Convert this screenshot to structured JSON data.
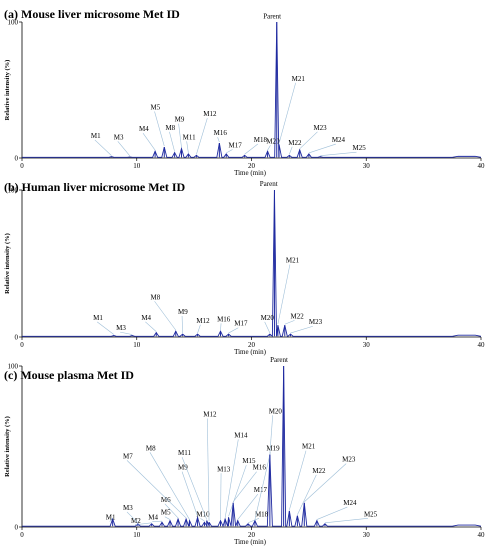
{
  "chart_data": [
    {
      "type": "line",
      "title": "(a) Mouse liver microsome Met ID",
      "xlabel": "Time (min)",
      "ylabel": "Relative intensity (%)",
      "xlim": [
        0,
        40
      ],
      "ylim": [
        0,
        100
      ],
      "x_ticks": [
        "0",
        "10",
        "20",
        "30",
        "40"
      ],
      "y_ticks": [
        "0",
        "100"
      ],
      "peaks": [
        {
          "name": "M1",
          "x": 7.8,
          "y": 1,
          "label_x": 6.0,
          "label_y": 14
        },
        {
          "name": "M3",
          "x": 9.4,
          "y": 0.8,
          "label_x": 8.0,
          "label_y": 13
        },
        {
          "name": "M4",
          "x": 11.6,
          "y": 5,
          "label_x": 10.2,
          "label_y": 19
        },
        {
          "name": "M5",
          "x": 12.4,
          "y": 8,
          "label_x": 11.2,
          "label_y": 35
        },
        {
          "name": "M8",
          "x": 13.3,
          "y": 4,
          "label_x": 12.5,
          "label_y": 20
        },
        {
          "name": "M9",
          "x": 13.9,
          "y": 7,
          "label_x": 13.3,
          "label_y": 26
        },
        {
          "name": "M11",
          "x": 14.5,
          "y": 3,
          "label_x": 14.0,
          "label_y": 13
        },
        {
          "name": "M12",
          "x": 15.2,
          "y": 2,
          "label_x": 15.8,
          "label_y": 30
        },
        {
          "name": "M16",
          "x": 17.2,
          "y": 11,
          "label_x": 16.7,
          "label_y": 16
        },
        {
          "name": "M17",
          "x": 17.8,
          "y": 3,
          "label_x": 18.0,
          "label_y": 7
        },
        {
          "name": "M18",
          "x": 19.4,
          "y": 2,
          "label_x": 20.2,
          "label_y": 11
        },
        {
          "name": "M20",
          "x": 21.4,
          "y": 5,
          "label_x": 21.3,
          "label_y": 10
        },
        {
          "name": "Parent",
          "x": 22.2,
          "y": 100,
          "label_x": 21.8,
          "label_y": 102
        },
        {
          "name": "M21",
          "x": 22.4,
          "y": 10,
          "label_x": 23.5,
          "label_y": 56
        },
        {
          "name": "M22",
          "x": 23.3,
          "y": 2,
          "label_x": 23.2,
          "label_y": 9
        },
        {
          "name": "M23",
          "x": 24.2,
          "y": 6,
          "label_x": 25.4,
          "label_y": 20
        },
        {
          "name": "M24",
          "x": 25.0,
          "y": 3,
          "label_x": 27.0,
          "label_y": 11
        },
        {
          "name": "M25",
          "x": 26.0,
          "y": 1,
          "label_x": 28.8,
          "label_y": 5
        }
      ]
    },
    {
      "type": "line",
      "title": "(b) Human liver microsome Met ID",
      "xlabel": "Time (min)",
      "ylabel": "Relative intensity (%)",
      "xlim": [
        0,
        40
      ],
      "ylim": [
        0,
        100
      ],
      "x_ticks": [
        "0",
        "10",
        "20",
        "30",
        "40"
      ],
      "y_ticks": [
        "0",
        "100"
      ],
      "peaks": [
        {
          "name": "M1",
          "x": 8.0,
          "y": 1,
          "label_x": 6.2,
          "label_y": 11
        },
        {
          "name": "M3",
          "x": 9.6,
          "y": 1,
          "label_x": 8.2,
          "label_y": 4
        },
        {
          "name": "M4",
          "x": 11.7,
          "y": 3,
          "label_x": 10.4,
          "label_y": 11
        },
        {
          "name": "M8",
          "x": 13.4,
          "y": 4,
          "label_x": 11.2,
          "label_y": 25
        },
        {
          "name": "M9",
          "x": 14.0,
          "y": 2,
          "label_x": 13.6,
          "label_y": 15
        },
        {
          "name": "M12",
          "x": 15.3,
          "y": 2,
          "label_x": 15.2,
          "label_y": 9
        },
        {
          "name": "M16",
          "x": 17.3,
          "y": 4,
          "label_x": 17.0,
          "label_y": 10
        },
        {
          "name": "M17",
          "x": 18.0,
          "y": 2,
          "label_x": 18.5,
          "label_y": 7
        },
        {
          "name": "M20",
          "x": 21.6,
          "y": 2,
          "label_x": 20.8,
          "label_y": 11
        },
        {
          "name": "Parent",
          "x": 22.0,
          "y": 100,
          "label_x": 21.5,
          "label_y": 102
        },
        {
          "name": "M21",
          "x": 22.3,
          "y": 8,
          "label_x": 23.0,
          "label_y": 50
        },
        {
          "name": "M22",
          "x": 22.9,
          "y": 8,
          "label_x": 23.4,
          "label_y": 12
        },
        {
          "name": "M23",
          "x": 23.4,
          "y": 2,
          "label_x": 25.0,
          "label_y": 8
        }
      ]
    },
    {
      "type": "line",
      "title": "(c) Mouse plasma Met ID",
      "xlabel": "Time (min)",
      "ylabel": "Relative intensity (%)",
      "xlim": [
        0,
        40
      ],
      "ylim": [
        0,
        100
      ],
      "x_ticks": [
        "0",
        "10",
        "20",
        "30",
        "40"
      ],
      "y_ticks": [
        "0",
        "100"
      ],
      "peaks": [
        {
          "name": "M1",
          "x": 7.9,
          "y": 5,
          "label_x": 7.3,
          "label_y": 4
        },
        {
          "name": "M2",
          "x": 11.3,
          "y": 2,
          "label_x": 9.5,
          "label_y": 2
        },
        {
          "name": "M3",
          "x": 10.1,
          "y": 2,
          "label_x": 8.8,
          "label_y": 10
        },
        {
          "name": "M4",
          "x": 12.2,
          "y": 3,
          "label_x": 11.0,
          "label_y": 4
        },
        {
          "name": "M5",
          "x": 12.9,
          "y": 4,
          "label_x": 12.1,
          "label_y": 7
        },
        {
          "name": "M6",
          "x": 13.6,
          "y": 5,
          "label_x": 12.1,
          "label_y": 15
        },
        {
          "name": "M7",
          "x": 14.3,
          "y": 5,
          "label_x": 8.8,
          "label_y": 42
        },
        {
          "name": "M8",
          "x": 14.6,
          "y": 4,
          "label_x": 10.8,
          "label_y": 47
        },
        {
          "name": "M9",
          "x": 15.3,
          "y": 6,
          "label_x": 13.6,
          "label_y": 35
        },
        {
          "name": "M10",
          "x": 15.9,
          "y": 3,
          "label_x": 15.2,
          "label_y": 6
        },
        {
          "name": "M11",
          "x": 16.1,
          "y": 4,
          "label_x": 13.6,
          "label_y": 44
        },
        {
          "name": "M12",
          "x": 16.3,
          "y": 3,
          "label_x": 15.8,
          "label_y": 68
        },
        {
          "name": "M13",
          "x": 17.3,
          "y": 4,
          "label_x": 17.0,
          "label_y": 34
        },
        {
          "name": "M14",
          "x": 17.7,
          "y": 5,
          "label_x": 18.5,
          "label_y": 55
        },
        {
          "name": "M15",
          "x": 18.0,
          "y": 6,
          "label_x": 19.2,
          "label_y": 39
        },
        {
          "name": "M16",
          "x": 18.4,
          "y": 15,
          "label_x": 20.1,
          "label_y": 35
        },
        {
          "name": "M17",
          "x": 18.8,
          "y": 4,
          "label_x": 20.2,
          "label_y": 21
        },
        {
          "name": "M18",
          "x": 19.7,
          "y": 2,
          "label_x": 20.3,
          "label_y": 6
        },
        {
          "name": "M19",
          "x": 20.3,
          "y": 4,
          "label_x": 21.3,
          "label_y": 47
        },
        {
          "name": "M20",
          "x": 21.6,
          "y": 45,
          "label_x": 21.5,
          "label_y": 70
        },
        {
          "name": "Parent",
          "x": 22.8,
          "y": 100,
          "label_x": 22.4,
          "label_y": 102
        },
        {
          "name": "M21",
          "x": 23.3,
          "y": 10,
          "label_x": 24.4,
          "label_y": 48
        },
        {
          "name": "M22",
          "x": 24.0,
          "y": 7,
          "label_x": 25.3,
          "label_y": 33
        },
        {
          "name": "M23",
          "x": 24.6,
          "y": 15,
          "label_x": 27.9,
          "label_y": 40
        },
        {
          "name": "M24",
          "x": 25.7,
          "y": 4,
          "label_x": 28.0,
          "label_y": 13
        },
        {
          "name": "M25",
          "x": 26.4,
          "y": 2,
          "label_x": 29.8,
          "label_y": 6
        }
      ]
    }
  ]
}
